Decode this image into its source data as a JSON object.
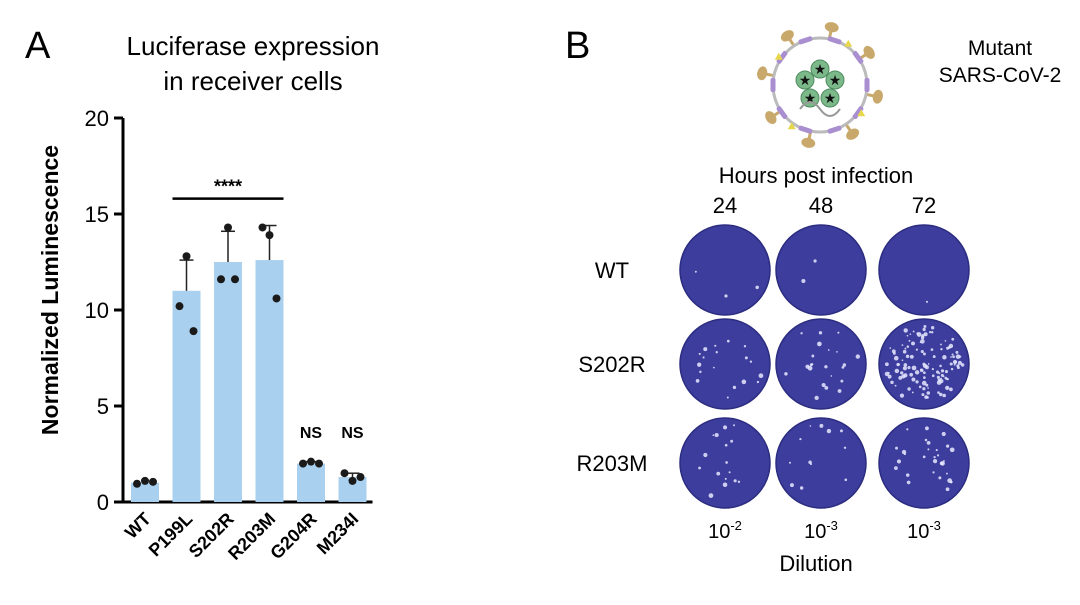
{
  "panel_a": {
    "label": "A",
    "chart_data": {
      "type": "bar",
      "title": "Luciferase expression",
      "subtitle": "in receiver cells",
      "xlabel": "",
      "ylabel": "Normalized Luminescence",
      "ylim": [
        0,
        20
      ],
      "yticks": [
        "0",
        "5",
        "10",
        "15",
        "20"
      ],
      "categories": [
        "WT",
        "P199L",
        "S202R",
        "R203M",
        "G204R",
        "M234I"
      ],
      "values": [
        1.0,
        11.0,
        12.5,
        12.6,
        2.0,
        1.3
      ],
      "errors": [
        0.0,
        1.6,
        1.6,
        1.8,
        0.1,
        0.2
      ],
      "points": [
        [
          0.95,
          1.1,
          1.05
        ],
        [
          12.8,
          10.2,
          8.9
        ],
        [
          14.3,
          11.6,
          11.6
        ],
        [
          13.9,
          14.3,
          10.6
        ],
        [
          2.0,
          2.1,
          2.0
        ],
        [
          1.5,
          1.1,
          1.3
        ]
      ],
      "significance": {
        "label": "****",
        "from": "P199L",
        "to": "R203M",
        "y": 15.8
      },
      "annotations": [
        {
          "category": "G204R",
          "text": "NS"
        },
        {
          "category": "M234I",
          "text": "NS"
        }
      ],
      "bar_color": "#a9d0ee",
      "point_color": "#1a1a1a"
    }
  },
  "panel_b": {
    "label": "B",
    "legend_line1": "Mutant",
    "legend_line2": "SARS-CoV-2",
    "header": "Hours post infection",
    "columns": [
      "24",
      "48",
      "72"
    ],
    "rows": [
      "WT",
      "S202R",
      "R203M"
    ],
    "dilutions": [
      {
        "base": "10",
        "exp": "-2"
      },
      {
        "base": "10",
        "exp": "-3"
      },
      {
        "base": "10",
        "exp": "-3"
      }
    ],
    "footer": "Dilution",
    "plaque_counts": [
      [
        3,
        2,
        1
      ],
      [
        18,
        22,
        120
      ],
      [
        16,
        12,
        30
      ]
    ],
    "well_color": "#3c3d9c",
    "icon": "virus-icon"
  }
}
